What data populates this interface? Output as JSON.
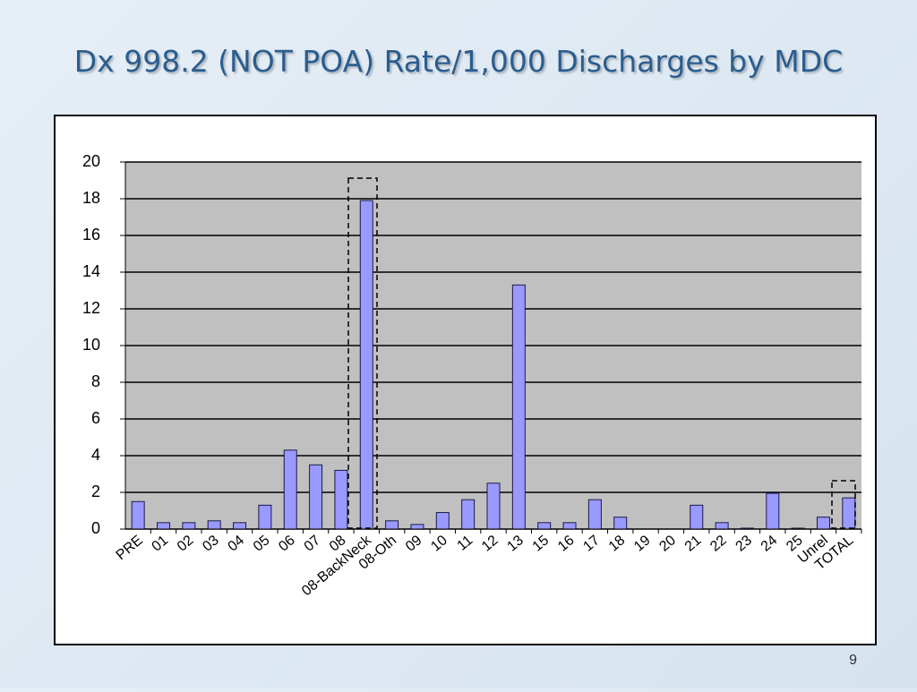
{
  "chart_data": {
    "type": "bar",
    "title": "Dx 998.2 (NOT POA) Rate/1,000 Discharges by MDC",
    "categories": [
      "PRE",
      "01",
      "02",
      "03",
      "04",
      "05",
      "06",
      "07",
      "08",
      "08-BackNeck",
      "08-Oth",
      "09",
      "10",
      "11",
      "12",
      "13",
      "15",
      "16",
      "17",
      "18",
      "19",
      "20",
      "21",
      "22",
      "23",
      "24",
      "25",
      "Unrel",
      "TOTAL"
    ],
    "values": [
      1.5,
      0.35,
      0.35,
      0.45,
      0.35,
      1.3,
      4.3,
      3.5,
      3.2,
      17.9,
      0.45,
      0.25,
      0.9,
      1.6,
      2.5,
      13.3,
      0.35,
      0.35,
      1.6,
      0.65,
      0,
      0,
      1.3,
      0.35,
      0.05,
      1.95,
      0.05,
      0.65,
      1.7
    ],
    "color": "#9999ff",
    "ylim": [
      0,
      20
    ],
    "yticks": [
      0,
      2,
      4,
      6,
      8,
      10,
      12,
      14,
      16,
      18,
      20
    ],
    "grid": true
  },
  "page_number": "9"
}
